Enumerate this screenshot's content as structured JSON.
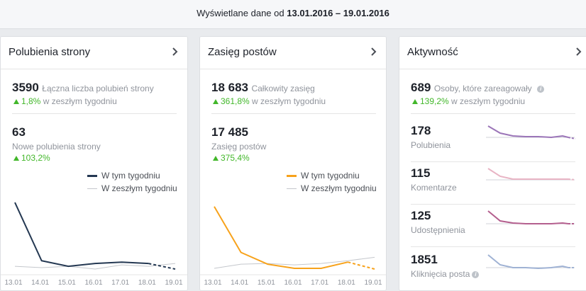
{
  "header": {
    "prefix": "Wyświetlane dane od",
    "range": "13.01.2016 – 19.01.2016"
  },
  "cards": {
    "likes": {
      "title": "Polubienia strony",
      "stat1_value": "3590",
      "stat1_label": "Łączna liczba polubień strony",
      "stat1_change": "1,8%",
      "stat1_change_suffix": "w zeszłym tygodniu",
      "stat2_value": "63",
      "stat2_label": "Nowe polubienia strony",
      "stat2_change": "103,2%",
      "legend_this": "W tym tygodniu",
      "legend_last": "W zeszłym tygodniu",
      "color": "#243852"
    },
    "reach": {
      "title": "Zasięg postów",
      "stat1_value": "18 683",
      "stat1_label": "Całkowity zasięg",
      "stat1_change": "361,8%",
      "stat1_change_suffix": "w zeszłym tygodniu",
      "stat2_value": "17 485",
      "stat2_label": "Zasięg postów",
      "stat2_change": "375,4%",
      "legend_this": "W tym tygodniu",
      "legend_last": "W zeszłym tygodniu",
      "color": "#f7a21b"
    },
    "engagement": {
      "title": "Aktywność",
      "stat1_value": "689",
      "stat1_label": "Osoby, które zareagowały",
      "stat1_change": "139,2%",
      "stat1_change_suffix": "w zeszłym tygodniu",
      "rows": [
        {
          "value": "178",
          "label": "Polubienia",
          "color": "#9b75b8"
        },
        {
          "value": "115",
          "label": "Komentarze",
          "color": "#e8b4c4"
        },
        {
          "value": "125",
          "label": "Udostępnienia",
          "color": "#b45f8e"
        },
        {
          "value": "1851",
          "label": "Kliknięcia posta",
          "color": "#9fb2d4"
        }
      ]
    }
  },
  "chart_data": [
    {
      "type": "line",
      "x": [
        "13.01",
        "14.01",
        "15.01",
        "16.01",
        "17.01",
        "18.01",
        "19.01"
      ],
      "series": [
        {
          "name": "W tym tygodniu",
          "values": [
            24,
            3,
            1,
            2,
            2.5,
            2,
            0
          ],
          "color": "#243852"
        },
        {
          "name": "W zeszłym tygodniu",
          "values": [
            1,
            0.5,
            1,
            0,
            1.5,
            1,
            2
          ],
          "color": "#c4c7cc"
        }
      ],
      "ylim": [
        0,
        25
      ]
    },
    {
      "type": "line",
      "x": [
        "13.01",
        "14.01",
        "15.01",
        "16.01",
        "17.01",
        "18.01",
        "19.01"
      ],
      "series": [
        {
          "name": "W tym tygodniu",
          "values": [
            9000,
            2400,
            700,
            100,
            100,
            1000,
            0
          ],
          "color": "#f7a21b"
        },
        {
          "name": "W zeszłym tygodniu",
          "values": [
            100,
            700,
            800,
            600,
            800,
            1200,
            1700
          ],
          "color": "#c4c7cc"
        }
      ],
      "ylim": [
        0,
        10000
      ]
    }
  ]
}
